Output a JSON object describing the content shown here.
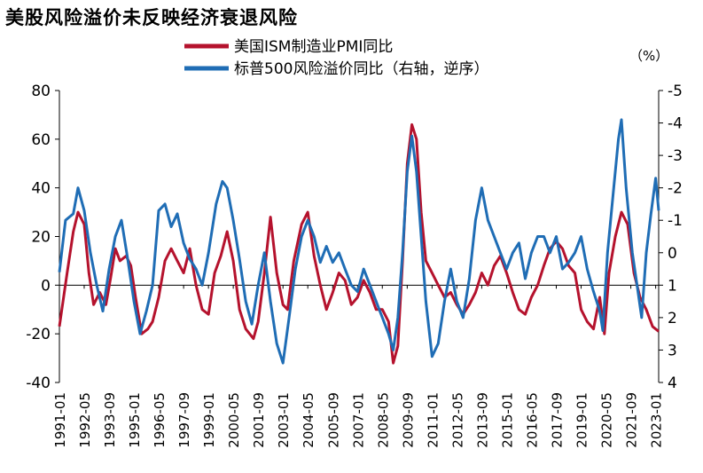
{
  "chart_data": {
    "type": "line",
    "title": "美股风险溢价未反映经济衰退风险",
    "unit_right": "（%）",
    "legend_position": "top-center",
    "grid": false,
    "x_ticks": [
      "1991-01",
      "1992-05",
      "1993-09",
      "1995-01",
      "1996-05",
      "1997-09",
      "1999-01",
      "2000-05",
      "2001-09",
      "2003-01",
      "2004-05",
      "2005-09",
      "2007-01",
      "2008-05",
      "2009-09",
      "2011-01",
      "2012-05",
      "2013-09",
      "2015-01",
      "2016-05",
      "2017-09",
      "2019-01",
      "2020-05",
      "2021-09",
      "2023-01"
    ],
    "y_left": {
      "ticks": [
        "80",
        "60",
        "40",
        "20",
        "0",
        "-20",
        "-40"
      ],
      "lim": [
        -40,
        80
      ]
    },
    "y_right": {
      "ticks": [
        "-5",
        "-4",
        "-3",
        "-2",
        "-1",
        "0",
        "1",
        "2",
        "3",
        "4"
      ],
      "lim": [
        -5,
        4
      ],
      "inverted": true
    },
    "series": [
      {
        "name": "美国ISM制造业PMI同比",
        "axis": "left",
        "color": "#b5122d",
        "points": [
          [
            "1991-01",
            -17
          ],
          [
            "1991-06",
            5
          ],
          [
            "1991-10",
            22
          ],
          [
            "1992-01",
            30
          ],
          [
            "1992-05",
            25
          ],
          [
            "1992-08",
            5
          ],
          [
            "1992-11",
            -8
          ],
          [
            "1993-03",
            -3
          ],
          [
            "1993-07",
            -8
          ],
          [
            "1993-10",
            3
          ],
          [
            "1994-01",
            15
          ],
          [
            "1994-04",
            10
          ],
          [
            "1994-08",
            12
          ],
          [
            "1994-11",
            8
          ],
          [
            "1995-02",
            -5
          ],
          [
            "1995-06",
            -20
          ],
          [
            "1995-10",
            -18
          ],
          [
            "1996-01",
            -15
          ],
          [
            "1996-05",
            -5
          ],
          [
            "1996-09",
            10
          ],
          [
            "1997-01",
            15
          ],
          [
            "1997-05",
            10
          ],
          [
            "1997-09",
            5
          ],
          [
            "1998-01",
            15
          ],
          [
            "1998-05",
            0
          ],
          [
            "1998-09",
            -10
          ],
          [
            "1999-01",
            -12
          ],
          [
            "1999-05",
            5
          ],
          [
            "1999-09",
            12
          ],
          [
            "2000-01",
            22
          ],
          [
            "2000-05",
            10
          ],
          [
            "2000-09",
            -10
          ],
          [
            "2001-01",
            -18
          ],
          [
            "2001-06",
            -22
          ],
          [
            "2001-09",
            -15
          ],
          [
            "2002-01",
            5
          ],
          [
            "2002-05",
            28
          ],
          [
            "2002-09",
            5
          ],
          [
            "2003-01",
            -8
          ],
          [
            "2003-04",
            -10
          ],
          [
            "2003-08",
            10
          ],
          [
            "2004-01",
            25
          ],
          [
            "2004-05",
            30
          ],
          [
            "2004-09",
            12
          ],
          [
            "2005-01",
            0
          ],
          [
            "2005-05",
            -10
          ],
          [
            "2005-09",
            -3
          ],
          [
            "2006-01",
            5
          ],
          [
            "2006-05",
            2
          ],
          [
            "2006-09",
            -8
          ],
          [
            "2007-01",
            -5
          ],
          [
            "2007-05",
            2
          ],
          [
            "2007-09",
            -3
          ],
          [
            "2008-01",
            -10
          ],
          [
            "2008-05",
            -10
          ],
          [
            "2008-09",
            -15
          ],
          [
            "2008-12",
            -32
          ],
          [
            "2009-03",
            -25
          ],
          [
            "2009-06",
            10
          ],
          [
            "2009-09",
            50
          ],
          [
            "2009-12",
            66
          ],
          [
            "2010-03",
            60
          ],
          [
            "2010-06",
            30
          ],
          [
            "2010-09",
            10
          ],
          [
            "2011-01",
            5
          ],
          [
            "2011-05",
            0
          ],
          [
            "2011-09",
            -5
          ],
          [
            "2012-01",
            -3
          ],
          [
            "2012-05",
            -8
          ],
          [
            "2012-09",
            -12
          ],
          [
            "2013-01",
            -8
          ],
          [
            "2013-05",
            -3
          ],
          [
            "2013-09",
            5
          ],
          [
            "2014-01",
            0
          ],
          [
            "2014-05",
            8
          ],
          [
            "2014-09",
            12
          ],
          [
            "2015-01",
            5
          ],
          [
            "2015-05",
            -3
          ],
          [
            "2015-09",
            -10
          ],
          [
            "2016-01",
            -12
          ],
          [
            "2016-05",
            -5
          ],
          [
            "2016-09",
            0
          ],
          [
            "2017-01",
            8
          ],
          [
            "2017-05",
            15
          ],
          [
            "2017-09",
            18
          ],
          [
            "2018-01",
            15
          ],
          [
            "2018-05",
            8
          ],
          [
            "2018-09",
            5
          ],
          [
            "2019-01",
            -10
          ],
          [
            "2019-05",
            -15
          ],
          [
            "2019-09",
            -18
          ],
          [
            "2020-01",
            -5
          ],
          [
            "2020-04",
            -20
          ],
          [
            "2020-07",
            5
          ],
          [
            "2020-11",
            20
          ],
          [
            "2021-03",
            30
          ],
          [
            "2021-07",
            25
          ],
          [
            "2021-11",
            5
          ],
          [
            "2022-03",
            -5
          ],
          [
            "2022-07",
            -10
          ],
          [
            "2022-11",
            -17
          ],
          [
            "2023-03",
            -19
          ]
        ]
      },
      {
        "name": "标普500风险溢价同比（右轴，逆序）",
        "axis": "right",
        "color": "#1f6db5",
        "points": [
          [
            "1991-01",
            0.6
          ],
          [
            "1991-05",
            -1.0
          ],
          [
            "1991-10",
            -1.2
          ],
          [
            "1992-01",
            -2.0
          ],
          [
            "1992-05",
            -1.3
          ],
          [
            "1992-09",
            0
          ],
          [
            "1993-01",
            1.0
          ],
          [
            "1993-05",
            1.8
          ],
          [
            "1993-09",
            0.5
          ],
          [
            "1994-01",
            -0.5
          ],
          [
            "1994-05",
            -1.0
          ],
          [
            "1994-09",
            0.2
          ],
          [
            "1995-01",
            1.5
          ],
          [
            "1995-05",
            2.5
          ],
          [
            "1995-09",
            1.8
          ],
          [
            "1996-01",
            1.0
          ],
          [
            "1996-05",
            -1.3
          ],
          [
            "1996-09",
            -1.5
          ],
          [
            "1997-01",
            -0.8
          ],
          [
            "1997-05",
            -1.2
          ],
          [
            "1997-09",
            -0.3
          ],
          [
            "1998-01",
            0.2
          ],
          [
            "1998-05",
            0.5
          ],
          [
            "1998-09",
            1.0
          ],
          [
            "1999-01",
            0
          ],
          [
            "1999-06",
            -1.5
          ],
          [
            "1999-10",
            -2.2
          ],
          [
            "2000-01",
            -2.0
          ],
          [
            "2000-05",
            -1.0
          ],
          [
            "2000-09",
            0.2
          ],
          [
            "2001-01",
            1.5
          ],
          [
            "2001-05",
            2.2
          ],
          [
            "2001-09",
            1.0
          ],
          [
            "2002-01",
            0
          ],
          [
            "2002-05",
            1.5
          ],
          [
            "2002-09",
            2.8
          ],
          [
            "2003-01",
            3.4
          ],
          [
            "2003-05",
            2.0
          ],
          [
            "2003-09",
            0.5
          ],
          [
            "2004-01",
            -0.5
          ],
          [
            "2004-05",
            -1.0
          ],
          [
            "2004-09",
            -0.5
          ],
          [
            "2005-01",
            0.3
          ],
          [
            "2005-05",
            -0.2
          ],
          [
            "2005-09",
            0.3
          ],
          [
            "2006-01",
            0
          ],
          [
            "2006-05",
            0.5
          ],
          [
            "2006-09",
            1.0
          ],
          [
            "2007-01",
            1.2
          ],
          [
            "2007-05",
            0.5
          ],
          [
            "2007-09",
            1.0
          ],
          [
            "2008-01",
            1.5
          ],
          [
            "2008-05",
            2.0
          ],
          [
            "2008-09",
            2.5
          ],
          [
            "2008-12",
            3.0
          ],
          [
            "2009-03",
            2.0
          ],
          [
            "2009-06",
            0
          ],
          [
            "2009-09",
            -2.5
          ],
          [
            "2009-12",
            -3.6
          ],
          [
            "2010-03",
            -2.5
          ],
          [
            "2010-06",
            -0.5
          ],
          [
            "2010-09",
            1.5
          ],
          [
            "2011-01",
            3.2
          ],
          [
            "2011-05",
            2.8
          ],
          [
            "2011-09",
            1.5
          ],
          [
            "2012-01",
            0.5
          ],
          [
            "2012-05",
            1.5
          ],
          [
            "2012-09",
            2.0
          ],
          [
            "2013-01",
            0.8
          ],
          [
            "2013-05",
            -1.0
          ],
          [
            "2013-09",
            -2.0
          ],
          [
            "2014-01",
            -1.0
          ],
          [
            "2014-05",
            -0.5
          ],
          [
            "2014-09",
            0
          ],
          [
            "2015-01",
            0.5
          ],
          [
            "2015-05",
            0
          ],
          [
            "2015-09",
            -0.3
          ],
          [
            "2016-01",
            0.8
          ],
          [
            "2016-05",
            0
          ],
          [
            "2016-09",
            -0.5
          ],
          [
            "2017-01",
            -0.5
          ],
          [
            "2017-05",
            0
          ],
          [
            "2017-09",
            -0.5
          ],
          [
            "2018-01",
            0.5
          ],
          [
            "2018-05",
            0.3
          ],
          [
            "2018-09",
            0
          ],
          [
            "2019-01",
            -0.5
          ],
          [
            "2019-05",
            0.5
          ],
          [
            "2019-09",
            1.2
          ],
          [
            "2020-01",
            1.8
          ],
          [
            "2020-03",
            2.4
          ],
          [
            "2020-06",
            0
          ],
          [
            "2020-10",
            -2.0
          ],
          [
            "2021-01",
            -3.5
          ],
          [
            "2021-03",
            -4.1
          ],
          [
            "2021-06",
            -2.0
          ],
          [
            "2021-10",
            0
          ],
          [
            "2022-01",
            1.0
          ],
          [
            "2022-04",
            2.0
          ],
          [
            "2022-07",
            0
          ],
          [
            "2022-10",
            -1.2
          ],
          [
            "2023-01",
            -2.3
          ],
          [
            "2023-03",
            -1.3
          ]
        ]
      }
    ]
  }
}
